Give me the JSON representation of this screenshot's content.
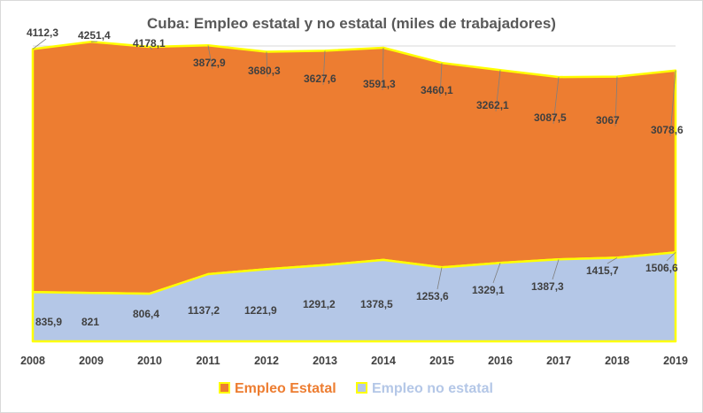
{
  "chart_data": {
    "type": "area",
    "title": "Cuba: Empleo estatal y no estatal (miles de trabajadores)",
    "stacked": true,
    "x": [
      "2008",
      "2009",
      "2010",
      "2011",
      "2012",
      "2013",
      "2014",
      "2015",
      "2016",
      "2017",
      "2018",
      "2019"
    ],
    "series": [
      {
        "name": "Empleo no estatal",
        "color": "#b4c7e7",
        "values": [
          835.9,
          821,
          806.4,
          1137.2,
          1221.9,
          1291.2,
          1378.5,
          1253.6,
          1329.1,
          1387.3,
          1415.7,
          1506.6
        ],
        "labels": [
          "835,9",
          "821",
          "806,4",
          "1137,2",
          "1221,9",
          "1291,2",
          "1378,5",
          "1253,6",
          "1329,1",
          "1387,3",
          "1415,7",
          "1506,6"
        ]
      },
      {
        "name": "Empleo Estatal",
        "color": "#ed7d31",
        "values": [
          4112.3,
          4251.4,
          4178.1,
          3872.9,
          3680.3,
          3627.6,
          3591.3,
          3460.1,
          3262.1,
          3087.5,
          3067,
          3078.6
        ],
        "labels": [
          "4112,3",
          "4251,4",
          "4178,1",
          "3872,9",
          "3680,3",
          "3627,6",
          "3591,3",
          "3460,1",
          "3262,1",
          "3087,5",
          "3067",
          "3078,6"
        ]
      }
    ],
    "ylim": [
      0,
      5000
    ],
    "grid": true,
    "outline_color": "#ffff00",
    "legend": {
      "position": "bottom",
      "items": [
        {
          "name": "Empleo Estatal",
          "color": "#ed7d31"
        },
        {
          "name": "Empleo no estatal",
          "color": "#b4c7e7"
        }
      ]
    }
  }
}
